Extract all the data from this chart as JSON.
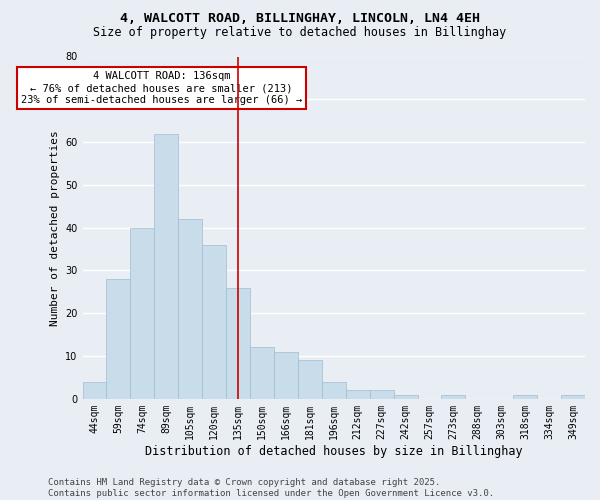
{
  "title": "4, WALCOTT ROAD, BILLINGHAY, LINCOLN, LN4 4EH",
  "subtitle": "Size of property relative to detached houses in Billinghay",
  "xlabel": "Distribution of detached houses by size in Billinghay",
  "ylabel": "Number of detached properties",
  "categories": [
    "44sqm",
    "59sqm",
    "74sqm",
    "89sqm",
    "105sqm",
    "120sqm",
    "135sqm",
    "150sqm",
    "166sqm",
    "181sqm",
    "196sqm",
    "212sqm",
    "227sqm",
    "242sqm",
    "257sqm",
    "273sqm",
    "288sqm",
    "303sqm",
    "318sqm",
    "334sqm",
    "349sqm"
  ],
  "values": [
    4,
    28,
    40,
    62,
    42,
    36,
    26,
    12,
    11,
    9,
    4,
    2,
    2,
    1,
    0,
    1,
    0,
    0,
    1,
    0,
    1
  ],
  "bar_color": "#c8dcea",
  "bar_edge_color": "#a0bdd0",
  "background_color": "#e8eef4",
  "grid_color": "#ffffff",
  "vline_x_index": 6,
  "vline_color": "#cc0000",
  "annotation_text": "4 WALCOTT ROAD: 136sqm\n← 76% of detached houses are smaller (213)\n23% of semi-detached houses are larger (66) →",
  "annotation_box_color": "#ffffff",
  "annotation_box_edge_color": "#cc0000",
  "ylim": [
    0,
    80
  ],
  "yticks": [
    0,
    10,
    20,
    30,
    40,
    50,
    60,
    70,
    80
  ],
  "footer": "Contains HM Land Registry data © Crown copyright and database right 2025.\nContains public sector information licensed under the Open Government Licence v3.0.",
  "title_fontsize": 9.5,
  "subtitle_fontsize": 8.5,
  "xlabel_fontsize": 8.5,
  "ylabel_fontsize": 8,
  "tick_fontsize": 7,
  "annotation_fontsize": 7.5,
  "footer_fontsize": 6.5
}
